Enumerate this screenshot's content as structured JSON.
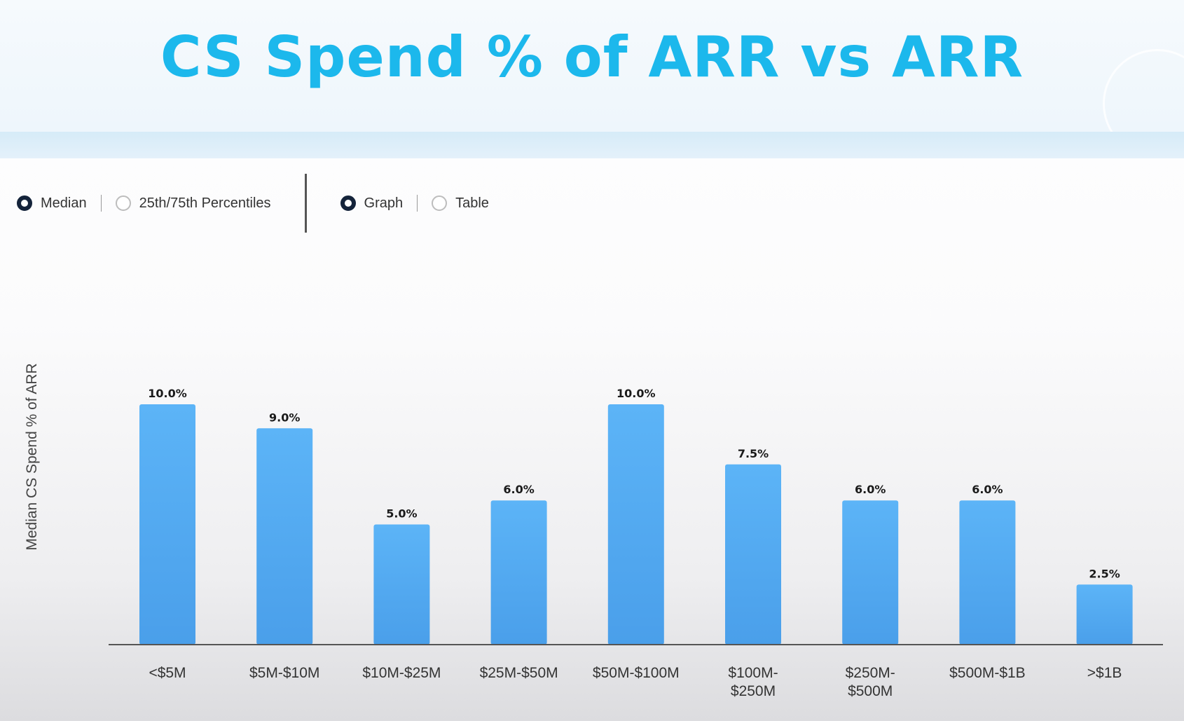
{
  "title": "CS Spend % of ARR vs ARR",
  "controls": {
    "statistic": [
      {
        "label": "Median",
        "selected": true
      },
      {
        "label": "25th/75th Percentiles",
        "selected": false
      }
    ],
    "view": [
      {
        "label": "Graph",
        "selected": true
      },
      {
        "label": "Table",
        "selected": false
      }
    ]
  },
  "colors": {
    "title": "#1cb8ec",
    "bar_top": "#5cb4f7",
    "bar_bottom": "#4a9fea"
  },
  "chart_data": {
    "type": "bar",
    "ylabel": "Median CS Spend % of ARR",
    "xlabel": "",
    "categories": [
      "<$5M",
      "$5M-$10M",
      "$10M-$25M",
      "$25M-$50M",
      "$50M-$100M",
      "$100M-\n$250M",
      "$250M-\n$500M",
      "$500M-$1B",
      ">$1B"
    ],
    "values": [
      10.0,
      9.0,
      5.0,
      6.0,
      10.0,
      7.5,
      6.0,
      6.0,
      2.5
    ],
    "value_labels": [
      "10.0%",
      "9.0%",
      "5.0%",
      "6.0%",
      "10.0%",
      "7.5%",
      "6.0%",
      "6.0%",
      "2.5%"
    ],
    "ylim": [
      0,
      10
    ],
    "grid": false
  }
}
